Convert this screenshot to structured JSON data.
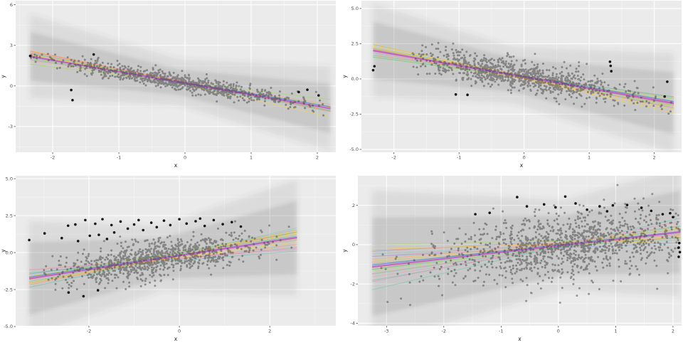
{
  "page": {
    "background": "#ffffff",
    "description": "2x2 grid of regression scatter plots with posterior draw lines and prediction bands"
  },
  "style": {
    "panel_bg": "#EBEBEB",
    "grid_major": "#FFFFFF",
    "grid_minor": "#F4F4F4",
    "tick_mark_color": "#333333",
    "tick_label_color": "#4D4D4D",
    "axis_title_color": "#1a1a1a",
    "point_color": "#3F3F3F",
    "point_opacity": 0.5,
    "outlier_color": "#0A0A0A",
    "median_line_color": "#BF63C6",
    "secondary_line_color": "#6E8FD0",
    "band_inner_color": "rgba(70,70,70,0.13)",
    "band_outer_color": "rgba(80,80,80,0.10)",
    "draw_palette": [
      "#66C2A5",
      "#FC8D62",
      "#8DA0CB",
      "#E78AC3",
      "#A6D854",
      "#FFD92F",
      "#E5C494",
      "#7FC7BD",
      "#F2A0A0",
      "#B4D66B"
    ]
  },
  "chart_data": [
    {
      "position": "top-left",
      "type": "scatter",
      "title": "",
      "xlabel": "x",
      "ylabel": "y",
      "xlim": [
        -2.56,
        2.28
      ],
      "ylim": [
        -4.9,
        6.3
      ],
      "x_ticks": [
        -2,
        -1,
        0,
        1,
        2
      ],
      "x_tick_labels": [
        "-2",
        "-1",
        "0",
        "1",
        "2"
      ],
      "y_ticks": [
        6,
        3,
        0,
        -3
      ],
      "y_tick_labels": [
        "6",
        "3",
        "0",
        "-3"
      ],
      "regression": {
        "intercept": 0.2,
        "slope": -0.85
      },
      "extent": [
        -2.34,
        2.2
      ],
      "spaghetti": {
        "count": 24,
        "slope_jitter": 0.1,
        "intercept_jitter": 0.08,
        "pivot": -0.1
      },
      "band": {
        "pivot": -0.1,
        "inner": [
          0.95,
          0.38
        ],
        "outer": [
          1.7,
          0.62
        ]
      },
      "points": {
        "n": 820,
        "x_mean": -0.05,
        "x_sd": 0.98,
        "x_range": [
          -2.34,
          2.1
        ],
        "residual_sd": 0.3,
        "seed": 11
      },
      "outliers": [
        [
          -2.34,
          2.22
        ],
        [
          -1.72,
          -0.3
        ],
        [
          -1.7,
          -1.05
        ],
        [
          -1.38,
          2.33
        ],
        [
          1.72,
          -0.45
        ],
        [
          1.85,
          -0.28
        ],
        [
          2.02,
          -0.7
        ]
      ]
    },
    {
      "position": "top-right",
      "type": "scatter",
      "title": "",
      "xlabel": "x",
      "ylabel": "y",
      "xlim": [
        -2.5,
        2.42
      ],
      "ylim": [
        -5.2,
        5.55
      ],
      "x_ticks": [
        -2,
        -1,
        0,
        1,
        2
      ],
      "x_tick_labels": [
        "-2",
        "-1",
        "0",
        "1",
        "2"
      ],
      "y_ticks": [
        5.0,
        2.5,
        0.0,
        -2.5,
        -5.0
      ],
      "y_tick_labels": [
        "5.0",
        "2.5",
        "0.0",
        "-2.5",
        "-5.0"
      ],
      "regression": {
        "intercept": 0.14,
        "slope": -0.81
      },
      "extent": [
        -2.32,
        2.3
      ],
      "spaghetti": {
        "count": 26,
        "slope_jitter": 0.13,
        "intercept_jitter": 0.1,
        "pivot": -0.2
      },
      "band": {
        "pivot": -0.2,
        "inner": [
          1.2,
          0.4
        ],
        "outer": [
          2.0,
          0.62
        ]
      },
      "points": {
        "n": 950,
        "x_mean": -0.15,
        "x_sd": 0.88,
        "x_range": [
          -1.72,
          2.3
        ],
        "residual_sd": 0.52,
        "seed": 23
      },
      "outliers": [
        [
          -2.3,
          0.9
        ],
        [
          -2.32,
          0.62
        ],
        [
          -1.05,
          -1.1
        ],
        [
          -0.87,
          -1.13
        ],
        [
          1.32,
          1.22
        ],
        [
          1.33,
          0.93
        ],
        [
          1.34,
          0.55
        ],
        [
          2.16,
          -1.25
        ],
        [
          2.2,
          -0.2
        ]
      ]
    },
    {
      "position": "bottom-left",
      "type": "scatter",
      "title": "",
      "xlabel": "x",
      "ylabel": "y",
      "xlim": [
        -3.62,
        3.46
      ],
      "ylim": [
        -4.95,
        5.2
      ],
      "x_ticks": [
        -2,
        0,
        2
      ],
      "x_tick_labels": [
        "-2",
        "0",
        "2"
      ],
      "y_ticks": [
        5.0,
        2.5,
        0.0,
        -2.5,
        -5.0
      ],
      "y_tick_labels": [
        "5.0",
        "2.5",
        "0.0",
        "-2.5",
        "-5.0"
      ],
      "regression": {
        "intercept": -0.2,
        "slope": 0.47
      },
      "extent": [
        -3.32,
        2.6
      ],
      "spaghetti": {
        "count": 26,
        "slope_jitter": 0.14,
        "intercept_jitter": 0.1,
        "pivot": -0.4
      },
      "band": {
        "pivot": -0.4,
        "inner": [
          1.35,
          0.38
        ],
        "outer": [
          2.2,
          0.58
        ]
      },
      "points": {
        "n": 950,
        "x_mean": -0.45,
        "x_sd": 1.1,
        "x_range": [
          -3.0,
          2.55
        ],
        "residual_sd": 0.62,
        "seed": 37
      },
      "outliers": [
        [
          -3.32,
          0.85
        ],
        [
          -2.98,
          1.3
        ],
        [
          -2.6,
          0.98
        ],
        [
          -2.46,
          1.82
        ],
        [
          -2.3,
          1.9
        ],
        [
          -2.24,
          0.78
        ],
        [
          -2.08,
          2.2
        ],
        [
          -1.98,
          1.14
        ],
        [
          -1.86,
          1.95
        ],
        [
          -1.78,
          1.2
        ],
        [
          -1.7,
          2.26
        ],
        [
          -1.6,
          0.92
        ],
        [
          -1.5,
          1.86
        ],
        [
          -1.44,
          1.36
        ],
        [
          -1.3,
          2.1
        ],
        [
          -1.14,
          1.62
        ],
        [
          -1.0,
          1.9
        ],
        [
          -0.9,
          2.2
        ],
        [
          -0.8,
          1.52
        ],
        [
          -0.62,
          2.02
        ],
        [
          -0.5,
          1.72
        ],
        [
          -0.34,
          2.16
        ],
        [
          -0.2,
          1.86
        ],
        [
          0.0,
          2.26
        ],
        [
          0.16,
          1.96
        ],
        [
          0.36,
          2.12
        ],
        [
          0.46,
          2.3
        ],
        [
          0.56,
          1.8
        ],
        [
          0.76,
          2.2
        ],
        [
          0.96,
          1.92
        ],
        [
          1.16,
          2.06
        ],
        [
          1.36,
          1.76
        ],
        [
          -2.45,
          -2.7
        ],
        [
          -2.12,
          -2.95
        ],
        [
          -1.8,
          -2.55
        ]
      ]
    },
    {
      "position": "bottom-right",
      "type": "scatter",
      "title": "",
      "xlabel": "x",
      "ylabel": "y",
      "xlim": [
        -3.5,
        2.15
      ],
      "ylim": [
        -4.13,
        3.51
      ],
      "x_ticks": [
        -3,
        -2,
        -1,
        0,
        1,
        2
      ],
      "x_tick_labels": [
        "-3",
        "-2",
        "-1",
        "0",
        "1",
        "2"
      ],
      "y_ticks": [
        2,
        0,
        -2,
        -4
      ],
      "y_tick_labels": [
        "2",
        "0",
        "-2",
        "-4"
      ],
      "regression": {
        "intercept": -0.06,
        "slope": 0.33
      },
      "extent": [
        -3.25,
        2.13
      ],
      "spaghetti": {
        "count": 30,
        "slope_jitter": 0.13,
        "intercept_jitter": 0.09,
        "pivot": 0.1
      },
      "band": {
        "pivot": 0.1,
        "inner": [
          1.5,
          0.3
        ],
        "outer": [
          2.3,
          0.48
        ]
      },
      "points": {
        "n": 1200,
        "x_mean": 0.2,
        "x_sd": 1.12,
        "x_range": [
          -3.25,
          2.12
        ],
        "residual_sd": 0.85,
        "seed": 53
      },
      "outliers": [
        [
          -1.45,
          1.55
        ],
        [
          -1.2,
          1.62
        ],
        [
          -0.72,
          2.42
        ],
        [
          -0.55,
          1.95
        ],
        [
          -0.25,
          2.05
        ],
        [
          -0.05,
          1.9
        ],
        [
          0.12,
          2.45
        ],
        [
          0.3,
          2.1
        ],
        [
          0.5,
          1.78
        ],
        [
          0.72,
          1.95
        ],
        [
          0.85,
          1.7
        ],
        [
          0.95,
          2.0
        ],
        [
          1.2,
          2.02
        ],
        [
          1.45,
          1.88
        ],
        [
          1.62,
          1.72
        ],
        [
          1.82,
          1.55
        ],
        [
          1.95,
          1.6
        ],
        [
          2.0,
          1.4
        ],
        [
          2.1,
          -0.15
        ],
        [
          2.12,
          -0.38
        ],
        [
          2.11,
          0.08
        ],
        [
          2.1,
          -0.62
        ]
      ]
    }
  ]
}
